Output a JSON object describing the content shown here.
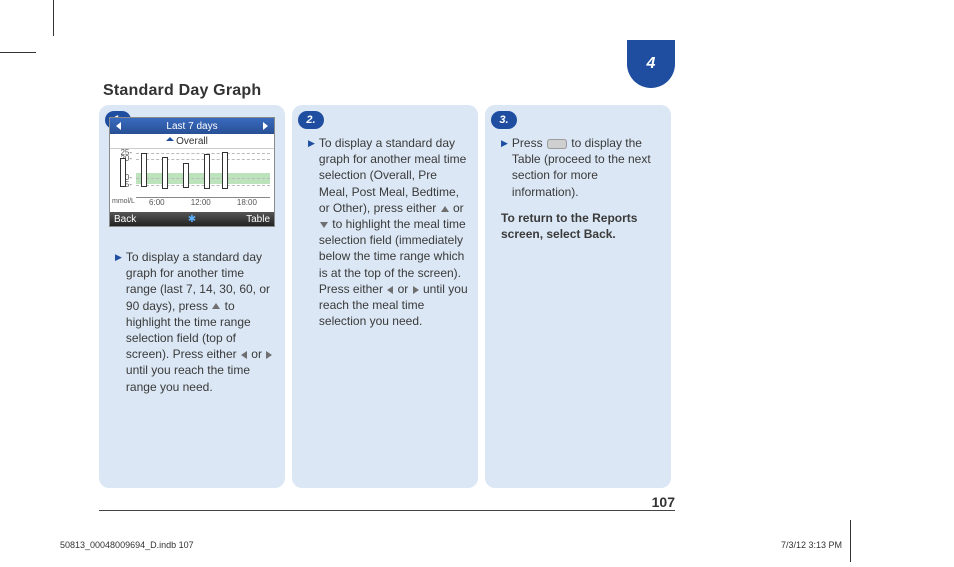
{
  "section_number": "4",
  "title": "Standard Day Graph",
  "page_number": "107",
  "footer_left": "50813_00048009694_D.indb   107",
  "footer_right": "7/3/12   3:13 PM",
  "cards": [
    {
      "step": "1.",
      "device": {
        "top_label": "Last 7 days",
        "selection_label": "Overall",
        "y_ticks": [
          "25",
          "20",
          "10",
          "5"
        ],
        "y_positions_pct": [
          10,
          22,
          58,
          72
        ],
        "unit": "mmol/L",
        "target_band": {
          "top_pct": 48,
          "height_pct": 22,
          "color": "#bde3bd"
        },
        "bars": [
          {
            "x_pct": 8,
            "top_pct": 20,
            "h_pct": 55
          },
          {
            "x_pct": 24,
            "top_pct": 10,
            "h_pct": 65
          },
          {
            "x_pct": 40,
            "top_pct": 18,
            "h_pct": 60
          },
          {
            "x_pct": 56,
            "top_pct": 28,
            "h_pct": 48
          },
          {
            "x_pct": 72,
            "top_pct": 12,
            "h_pct": 66
          },
          {
            "x_pct": 86,
            "top_pct": 8,
            "h_pct": 70
          }
        ],
        "x_labels": [
          "6:00",
          "12:00",
          "18:00"
        ],
        "soft_left": "Back",
        "soft_right": "Table",
        "colors": {
          "topbar_from": "#3a6bbf",
          "topbar_to": "#274f94",
          "softkey_from": "#555555",
          "softkey_to": "#222222",
          "grid": "#bbbbbb"
        }
      },
      "text_before": "To display a standard day graph for another time range (last 7, 14, 30, 60, or 90 days), press ",
      "text_mid1": " to highlight the time range selection field (top of screen). Press either ",
      "text_mid2": " or ",
      "text_after": " until you reach the time range you need."
    },
    {
      "step": "2.",
      "t1": "To display a standard day graph for another meal time selection (Overall, Pre Meal, Post Meal, Bedtime, or Other), press either ",
      "t2": " or ",
      "t3": " to highlight the meal time selection field (immediately below the time range which is at the top of the screen). Press either ",
      "t4": " or ",
      "t5": " until you reach the meal time selection you need."
    },
    {
      "step": "3.",
      "t1": "Press ",
      "t2": " to display the Table (proceed to the next section for more information).",
      "bold": "To return to the Reports screen, select Back."
    }
  ],
  "colors": {
    "brand_blue": "#1f4ea1",
    "card_bg": "#dbe7f4",
    "text": "#3a3a3a"
  }
}
